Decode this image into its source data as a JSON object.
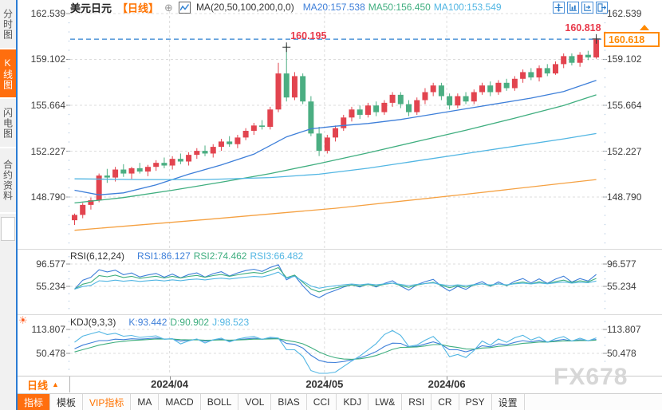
{
  "sidebar": {
    "tabs": [
      {
        "label": "分时图",
        "active": false
      },
      {
        "label": "K线图",
        "active": true
      },
      {
        "label": "闪电图",
        "active": false
      },
      {
        "label": "合约资料",
        "active": false
      }
    ]
  },
  "header": {
    "symbol": "美元日元",
    "period_tag": "【日线】",
    "ma_params": "MA(20,50,100,200,0,0)",
    "ma_values": [
      {
        "label": "MA20:157.538",
        "color": "#3e7fd9"
      },
      {
        "label": "MA50:156.450",
        "color": "#3fae7f"
      },
      {
        "label": "MA100:153.549",
        "color": "#52b6e3"
      }
    ]
  },
  "main_pane": {
    "current_price": "160.618"
  },
  "rsi_pane": {
    "title": "RSI(6,12,24)",
    "values": [
      {
        "label": "RSI1:86.127",
        "color": "#3e7fd9"
      },
      {
        "label": "RSI2:74.462",
        "color": "#3fae7f"
      },
      {
        "label": "RSI3:66.482",
        "color": "#52b6e3"
      }
    ]
  },
  "kdj_pane": {
    "title": "KDJ(9,3,3)",
    "values": [
      {
        "label": "K:93.442",
        "color": "#3e7fd9"
      },
      {
        "label": "D:90.902",
        "color": "#3fae7f"
      },
      {
        "label": "J:98.523",
        "color": "#52b6e3"
      }
    ]
  },
  "xaxis": {
    "period_label": "日线",
    "period_arrow": "▲"
  },
  "toolbar": {
    "items": [
      {
        "label": "指标",
        "style": "active"
      },
      {
        "label": "模板",
        "style": ""
      },
      {
        "label": "VIP指标",
        "style": "vip"
      },
      {
        "label": "MA",
        "style": ""
      },
      {
        "label": "MACD",
        "style": ""
      },
      {
        "label": "BOLL",
        "style": ""
      },
      {
        "label": "VOL",
        "style": ""
      },
      {
        "label": "BIAS",
        "style": ""
      },
      {
        "label": "CCI",
        "style": ""
      },
      {
        "label": "KDJ",
        "style": ""
      },
      {
        "label": "LW&",
        "style": ""
      },
      {
        "label": "RSI",
        "style": ""
      },
      {
        "label": "CR",
        "style": ""
      },
      {
        "label": "PSY",
        "style": ""
      },
      {
        "label": "设置",
        "style": ""
      }
    ]
  },
  "watermark": "FX678",
  "colors": {
    "up": "#e2444f",
    "down": "#4bae82",
    "grid": "#dcdcdc",
    "axis_text": "#3c3c3c",
    "accent_orange": "#ff6e0e",
    "link_blue": "#2f80d0",
    "label_red": "#e8394a",
    "price_box_orange": "#ff8a00"
  },
  "chart_data": {
    "type": "candlestick",
    "symbol": "美元日元 (USD/JPY)",
    "period": "日线 (daily)",
    "y_axis_ticks": [
      "162.539",
      "159.102",
      "155.664",
      "152.227",
      "148.790"
    ],
    "rsi_axis_ticks": [
      "96.577",
      "55.234"
    ],
    "kdj_axis_ticks": [
      "113.807",
      "50.478"
    ],
    "months": [
      {
        "label": "2024/04",
        "candle_index": 12
      },
      {
        "label": "2024/05",
        "candle_index": 31
      },
      {
        "label": "2024/06",
        "candle_index": 46
      }
    ],
    "price_line": 160.618,
    "swing_markers": [
      {
        "candle_index": 26,
        "price": 160.195,
        "label": "160.195",
        "label_anchor": "start"
      },
      {
        "candle_index": 64,
        "price": 160.818,
        "label": "160.818",
        "label_anchor": "end"
      }
    ],
    "rsi_periods": [
      6,
      12,
      24
    ],
    "kdj_params": [
      9,
      3,
      3
    ],
    "indicator_colors": [
      "#3e7fd9",
      "#3fae7f",
      "#52b6e3"
    ],
    "ma_lines": [
      {
        "name": "MA20",
        "color": "#3e7fd9",
        "points": [
          [
            0,
            149.3
          ],
          [
            3,
            148.95
          ],
          [
            6,
            149.1
          ],
          [
            10,
            149.7
          ],
          [
            14,
            150.5
          ],
          [
            18,
            151.2
          ],
          [
            22,
            152.0
          ],
          [
            26,
            153.3
          ],
          [
            29,
            153.9
          ],
          [
            32,
            154.1
          ],
          [
            36,
            154.3
          ],
          [
            40,
            154.6
          ],
          [
            44,
            155.0
          ],
          [
            48,
            155.4
          ],
          [
            52,
            155.8
          ],
          [
            56,
            156.2
          ],
          [
            60,
            156.7
          ],
          [
            64,
            157.538
          ]
        ]
      },
      {
        "name": "MA50",
        "color": "#3fae7f",
        "points": [
          [
            0,
            148.35
          ],
          [
            6,
            148.75
          ],
          [
            12,
            149.3
          ],
          [
            18,
            149.9
          ],
          [
            24,
            150.55
          ],
          [
            30,
            151.3
          ],
          [
            36,
            152.1
          ],
          [
            42,
            152.95
          ],
          [
            48,
            153.8
          ],
          [
            54,
            154.7
          ],
          [
            60,
            155.65
          ],
          [
            64,
            156.45
          ]
        ]
      },
      {
        "name": "MA100",
        "color": "#52b6e3",
        "points": [
          [
            0,
            150.15
          ],
          [
            8,
            150.1
          ],
          [
            16,
            150.1
          ],
          [
            24,
            150.25
          ],
          [
            30,
            150.5
          ],
          [
            36,
            150.95
          ],
          [
            42,
            151.5
          ],
          [
            48,
            152.05
          ],
          [
            54,
            152.6
          ],
          [
            60,
            153.15
          ],
          [
            64,
            153.549
          ]
        ]
      },
      {
        "name": "MA200",
        "color": "#f5a142",
        "points": [
          [
            0,
            146.3
          ],
          [
            16,
            147.1
          ],
          [
            32,
            147.95
          ],
          [
            48,
            149.0
          ],
          [
            64,
            150.1
          ]
        ]
      }
    ],
    "ohlc": [
      [
        147.05,
        147.55,
        146.7,
        147.45
      ],
      [
        147.45,
        148.35,
        147.2,
        148.2
      ],
      [
        148.2,
        148.75,
        147.85,
        148.55
      ],
      [
        148.55,
        150.55,
        148.4,
        150.4
      ],
      [
        150.4,
        150.9,
        149.85,
        150.25
      ],
      [
        150.25,
        151.05,
        149.95,
        150.85
      ],
      [
        150.85,
        151.25,
        150.3,
        150.55
      ],
      [
        150.55,
        151.05,
        150.15,
        150.95
      ],
      [
        150.95,
        151.35,
        150.55,
        150.7
      ],
      [
        150.7,
        151.2,
        150.35,
        151.05
      ],
      [
        151.05,
        151.55,
        150.75,
        151.35
      ],
      [
        151.35,
        151.75,
        150.95,
        151.15
      ],
      [
        151.15,
        151.85,
        150.85,
        151.65
      ],
      [
        151.65,
        152.05,
        151.25,
        151.45
      ],
      [
        151.45,
        152.15,
        151.15,
        151.95
      ],
      [
        151.95,
        152.45,
        151.65,
        152.25
      ],
      [
        152.25,
        152.65,
        151.85,
        152.05
      ],
      [
        152.05,
        152.75,
        151.75,
        152.55
      ],
      [
        152.55,
        153.15,
        152.25,
        152.95
      ],
      [
        152.95,
        153.35,
        152.55,
        152.75
      ],
      [
        152.75,
        153.45,
        152.45,
        153.25
      ],
      [
        153.25,
        153.95,
        153.05,
        153.75
      ],
      [
        153.75,
        154.35,
        153.45,
        154.15
      ],
      [
        154.15,
        154.55,
        153.85,
        154.05
      ],
      [
        154.05,
        155.55,
        153.85,
        155.35
      ],
      [
        155.35,
        158.85,
        155.15,
        158.05
      ],
      [
        158.05,
        160.195,
        155.95,
        156.25
      ],
      [
        156.25,
        158.15,
        156.05,
        157.85
      ],
      [
        157.85,
        158.05,
        155.75,
        155.95
      ],
      [
        155.95,
        156.35,
        153.35,
        153.55
      ],
      [
        153.55,
        154.05,
        151.86,
        152.25
      ],
      [
        152.25,
        153.45,
        152.05,
        153.25
      ],
      [
        153.25,
        154.15,
        152.95,
        153.95
      ],
      [
        153.95,
        154.95,
        153.75,
        154.75
      ],
      [
        154.75,
        155.55,
        154.45,
        155.35
      ],
      [
        155.35,
        155.65,
        154.65,
        154.95
      ],
      [
        154.95,
        155.85,
        154.75,
        155.65
      ],
      [
        155.65,
        155.95,
        154.85,
        155.15
      ],
      [
        155.15,
        156.05,
        154.95,
        155.85
      ],
      [
        155.85,
        156.65,
        155.55,
        156.45
      ],
      [
        156.45,
        156.65,
        155.45,
        155.75
      ],
      [
        155.75,
        156.05,
        154.85,
        155.15
      ],
      [
        155.15,
        156.25,
        154.95,
        156.05
      ],
      [
        156.05,
        156.95,
        155.75,
        156.65
      ],
      [
        156.65,
        157.35,
        156.35,
        157.15
      ],
      [
        157.15,
        157.35,
        156.05,
        156.35
      ],
      [
        156.35,
        156.55,
        155.35,
        155.65
      ],
      [
        155.65,
        156.55,
        155.45,
        156.35
      ],
      [
        156.35,
        156.65,
        155.75,
        155.95
      ],
      [
        155.95,
        156.85,
        155.75,
        156.65
      ],
      [
        156.65,
        157.35,
        156.45,
        157.15
      ],
      [
        157.15,
        157.45,
        156.35,
        156.65
      ],
      [
        156.65,
        157.55,
        156.45,
        157.35
      ],
      [
        157.35,
        157.65,
        156.75,
        156.95
      ],
      [
        156.95,
        157.85,
        156.75,
        157.65
      ],
      [
        157.65,
        158.35,
        157.35,
        158.15
      ],
      [
        158.15,
        158.45,
        157.55,
        157.75
      ],
      [
        157.75,
        158.65,
        157.45,
        158.45
      ],
      [
        158.45,
        158.75,
        157.85,
        158.05
      ],
      [
        158.05,
        158.95,
        157.95,
        158.75
      ],
      [
        158.75,
        159.55,
        158.45,
        159.35
      ],
      [
        159.35,
        159.55,
        158.65,
        158.85
      ],
      [
        158.85,
        159.65,
        158.55,
        159.45
      ],
      [
        159.45,
        159.75,
        159.05,
        159.25
      ],
      [
        159.25,
        160.818,
        159.15,
        160.618
      ]
    ]
  }
}
